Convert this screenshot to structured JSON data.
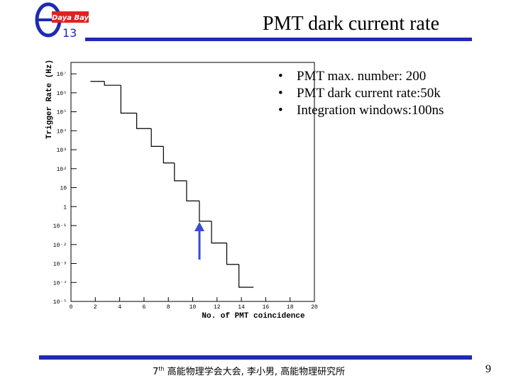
{
  "slide": {
    "logo": {
      "name": "Daya Bay",
      "theta_index": "13"
    },
    "title": "PMT dark current rate",
    "bullets": [
      "PMT max. number: 200",
      "PMT dark current rate:50k",
      "Integration windows:100ns"
    ],
    "footer": {
      "ordinal": "7",
      "suffix": "th",
      "text": " 高能物理学会大会, 李小男, 高能物理研究所"
    },
    "page_number": 9
  },
  "chart_data": {
    "type": "histogram",
    "x_label": "No. of PMT coincidence",
    "y_label": "Trigger Rate (Hz)",
    "bins": [
      1.6,
      2.75,
      4.1,
      5.4,
      6.6,
      7.6,
      8.5,
      9.5,
      10.55,
      11.55,
      12.8,
      13.8,
      15.0
    ],
    "values": [
      4000000,
      2500000,
      85000,
      13000,
      1500,
      200,
      23,
      2,
      0.17,
      0.012,
      0.0009,
      5.6e-05
    ],
    "color": "#000000",
    "xlim": [
      0,
      20
    ],
    "xticks": [
      0,
      2,
      4,
      6,
      8,
      10,
      12,
      14,
      16,
      18,
      20
    ],
    "ylim": [
      1e-05,
      40000000
    ],
    "log_y": true,
    "yticks": [
      {
        "value": 1e-05,
        "label": "10⁻⁵"
      },
      {
        "value": 0.0001,
        "label": "10⁻⁴"
      },
      {
        "value": 0.001,
        "label": "10⁻³"
      },
      {
        "value": 0.01,
        "label": "10⁻²"
      },
      {
        "value": 0.1,
        "label": "10⁻¹"
      },
      1,
      10,
      {
        "value": 100,
        "label": "10²"
      },
      {
        "value": 1000,
        "label": "10³"
      },
      {
        "value": 10000,
        "label": "10⁴"
      },
      {
        "value": 100000,
        "label": "10⁵"
      },
      {
        "value": 1000000,
        "label": "10⁶"
      },
      {
        "value": 10000000,
        "label": "10⁷"
      }
    ]
  }
}
